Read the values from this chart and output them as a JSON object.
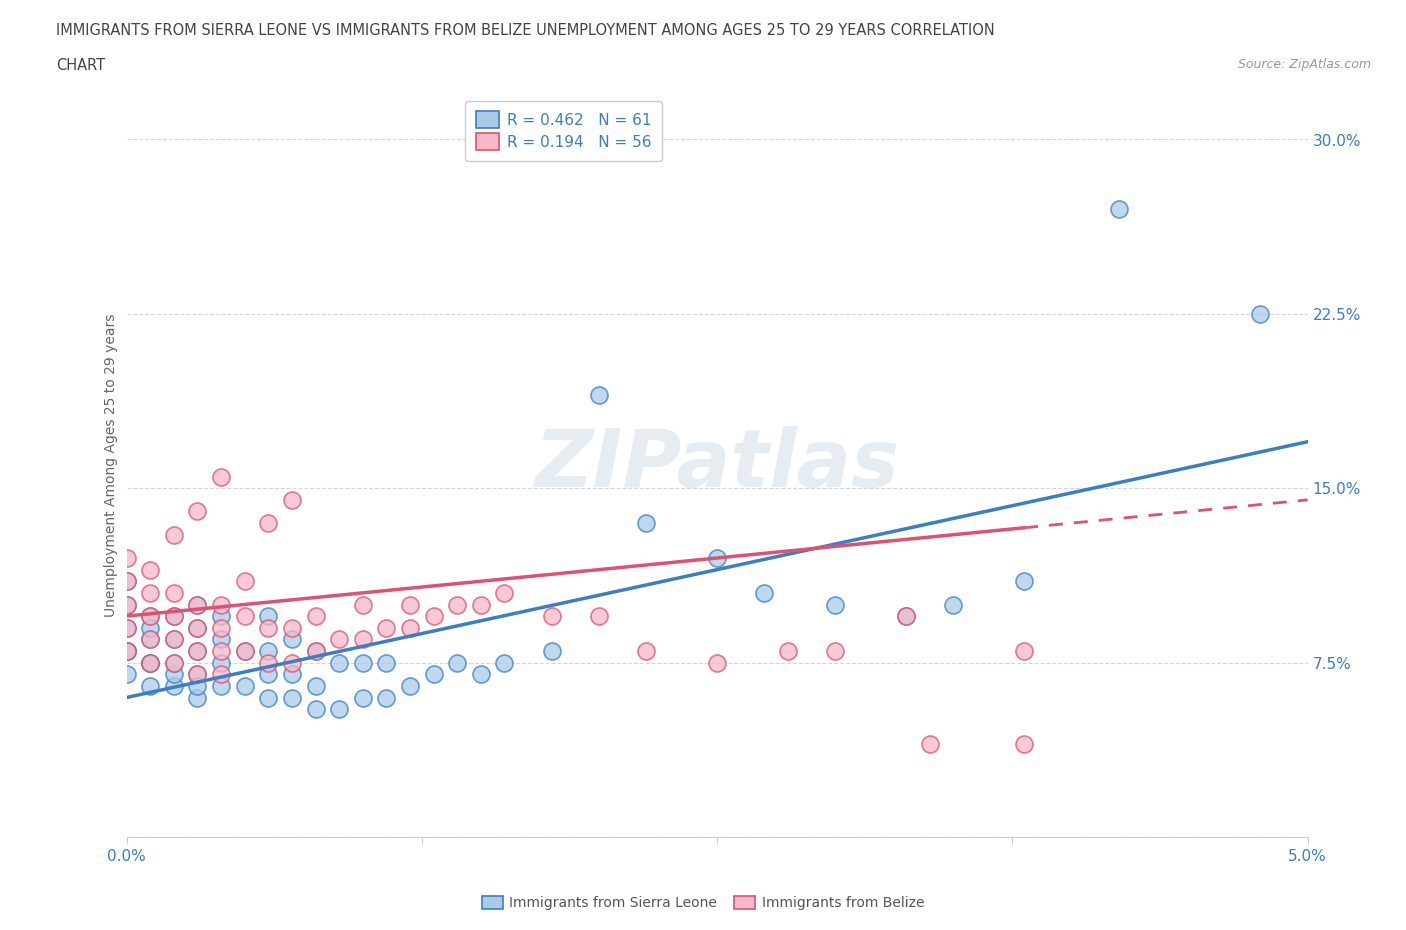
{
  "title_line1": "IMMIGRANTS FROM SIERRA LEONE VS IMMIGRANTS FROM BELIZE UNEMPLOYMENT AMONG AGES 25 TO 29 YEARS CORRELATION",
  "title_line2": "CHART",
  "source": "Source: ZipAtlas.com",
  "ylabel": "Unemployment Among Ages 25 to 29 years",
  "xlim": [
    0.0,
    0.05
  ],
  "ylim": [
    0.0,
    0.32
  ],
  "yticks": [
    0.0,
    0.075,
    0.15,
    0.225,
    0.3
  ],
  "ytick_labels": [
    "",
    "7.5%",
    "15.0%",
    "22.5%",
    "30.0%"
  ],
  "xticks": [
    0.0,
    0.0125,
    0.025,
    0.0375,
    0.05
  ],
  "xtick_labels": [
    "0.0%",
    "",
    "",
    "",
    "5.0%"
  ],
  "legend_r1": "R = 0.462   N = 61",
  "legend_r2": "R = 0.194   N = 56",
  "color_blue": "#a8cce8",
  "color_pink": "#f7b8c8",
  "color_blue_line": "#3a7ec6",
  "color_pink_line": "#e05070",
  "watermark": "ZIPatlas",
  "sl_intercept": 0.06,
  "sl_slope": 2.2,
  "bz_intercept": 0.095,
  "bz_slope": 1.0,
  "bz_line_end": 0.038,
  "sierra_leone_x": [
    0.0,
    0.0,
    0.0,
    0.0,
    0.0,
    0.0,
    0.001,
    0.001,
    0.001,
    0.001,
    0.001,
    0.001,
    0.002,
    0.002,
    0.002,
    0.002,
    0.002,
    0.003,
    0.003,
    0.003,
    0.003,
    0.003,
    0.003,
    0.004,
    0.004,
    0.004,
    0.004,
    0.005,
    0.005,
    0.006,
    0.006,
    0.006,
    0.006,
    0.007,
    0.007,
    0.007,
    0.008,
    0.008,
    0.008,
    0.009,
    0.009,
    0.01,
    0.01,
    0.011,
    0.011,
    0.012,
    0.013,
    0.014,
    0.015,
    0.016,
    0.018,
    0.02,
    0.022,
    0.025,
    0.027,
    0.03,
    0.033,
    0.035,
    0.038,
    0.042,
    0.048
  ],
  "sierra_leone_y": [
    0.07,
    0.08,
    0.09,
    0.1,
    0.11,
    0.08,
    0.065,
    0.075,
    0.085,
    0.095,
    0.075,
    0.09,
    0.065,
    0.07,
    0.085,
    0.095,
    0.075,
    0.06,
    0.07,
    0.08,
    0.09,
    0.065,
    0.1,
    0.065,
    0.075,
    0.085,
    0.095,
    0.065,
    0.08,
    0.06,
    0.07,
    0.08,
    0.095,
    0.06,
    0.07,
    0.085,
    0.055,
    0.065,
    0.08,
    0.055,
    0.075,
    0.06,
    0.075,
    0.06,
    0.075,
    0.065,
    0.07,
    0.075,
    0.07,
    0.075,
    0.08,
    0.19,
    0.135,
    0.12,
    0.105,
    0.1,
    0.095,
    0.1,
    0.11,
    0.27,
    0.225
  ],
  "belize_x": [
    0.0,
    0.0,
    0.0,
    0.0,
    0.0,
    0.001,
    0.001,
    0.001,
    0.001,
    0.001,
    0.002,
    0.002,
    0.002,
    0.002,
    0.002,
    0.003,
    0.003,
    0.003,
    0.003,
    0.003,
    0.004,
    0.004,
    0.004,
    0.004,
    0.004,
    0.005,
    0.005,
    0.005,
    0.006,
    0.006,
    0.006,
    0.007,
    0.007,
    0.007,
    0.008,
    0.008,
    0.009,
    0.01,
    0.01,
    0.011,
    0.012,
    0.012,
    0.013,
    0.014,
    0.015,
    0.016,
    0.018,
    0.02,
    0.022,
    0.025,
    0.028,
    0.03,
    0.033,
    0.034,
    0.038,
    0.038
  ],
  "belize_y": [
    0.09,
    0.1,
    0.11,
    0.12,
    0.08,
    0.085,
    0.095,
    0.105,
    0.075,
    0.115,
    0.085,
    0.095,
    0.105,
    0.075,
    0.13,
    0.08,
    0.09,
    0.1,
    0.07,
    0.14,
    0.08,
    0.09,
    0.1,
    0.07,
    0.155,
    0.08,
    0.095,
    0.11,
    0.075,
    0.09,
    0.135,
    0.075,
    0.09,
    0.145,
    0.08,
    0.095,
    0.085,
    0.085,
    0.1,
    0.09,
    0.09,
    0.1,
    0.095,
    0.1,
    0.1,
    0.105,
    0.095,
    0.095,
    0.08,
    0.075,
    0.08,
    0.08,
    0.095,
    0.04,
    0.08,
    0.04
  ],
  "background_color": "#ffffff",
  "grid_color": "#cccccc"
}
